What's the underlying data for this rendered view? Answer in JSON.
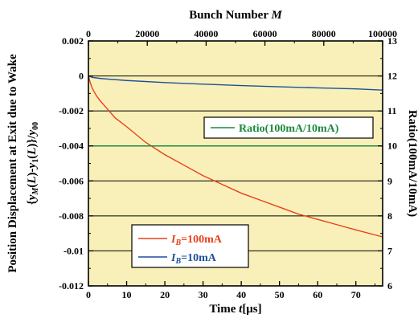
{
  "chart_data": {
    "type": "line",
    "title": "",
    "xlabel_bottom": "Time t[μs]",
    "xlabel_top": "Bunch Number M",
    "ylabel_left_line1": "Position Displacement at Exit due to Wake",
    "ylabel_left_line2": "{yM(L)-y1(L)}/y00",
    "ylabel_right": "Ratio(100mA/10mA)",
    "xlim_bottom": [
      0,
      77
    ],
    "xticks_bottom": [
      0,
      10,
      20,
      30,
      40,
      50,
      60,
      70
    ],
    "xlim_top": [
      0,
      100000
    ],
    "xticks_top": [
      0,
      20000,
      40000,
      60000,
      80000,
      100000
    ],
    "ylim_left": [
      -0.012,
      0.002
    ],
    "yticks_left": [
      0.002,
      0,
      -0.002,
      -0.004,
      -0.006,
      -0.008,
      -0.01,
      -0.012
    ],
    "ytick_labels_left": [
      "0.002",
      "0",
      "-0.002",
      "-0.004",
      "-0.006",
      "-0.008",
      "-0.01",
      "-0.012"
    ],
    "ylim_right": [
      6,
      13
    ],
    "yticks_right": [
      6,
      7,
      8,
      9,
      10,
      11,
      12,
      13
    ],
    "grid": true,
    "background_color": "#f8f0b8",
    "series": [
      {
        "name": "IB=100mA",
        "axis": "left",
        "color": "#e8401c",
        "x": [
          0,
          0.5,
          1,
          2,
          3,
          5,
          7,
          10,
          15,
          20,
          25,
          30,
          35,
          40,
          45,
          50,
          55,
          60,
          65,
          70,
          77
        ],
        "y": [
          0,
          -0.0004,
          -0.0007,
          -0.0011,
          -0.0014,
          -0.0019,
          -0.0024,
          -0.0029,
          -0.0038,
          -0.0045,
          -0.0051,
          -0.0057,
          -0.0062,
          -0.0067,
          -0.0071,
          -0.0075,
          -0.0079,
          -0.0082,
          -0.0085,
          -0.0088,
          -0.0092
        ]
      },
      {
        "name": "IB=10mA",
        "axis": "left",
        "color": "#1e4f9c",
        "x": [
          0,
          1,
          3,
          5,
          10,
          20,
          30,
          40,
          50,
          60,
          70,
          77
        ],
        "y": [
          0,
          -8e-05,
          -0.00014,
          -0.00018,
          -0.00026,
          -0.00038,
          -0.00047,
          -0.00055,
          -0.00062,
          -0.00068,
          -0.00074,
          -0.00081
        ]
      },
      {
        "name": "Ratio(100mA/10mA)",
        "axis": "right",
        "color": "#1a8a3c",
        "x": [
          0,
          77
        ],
        "y": [
          10,
          10
        ]
      }
    ],
    "legend_ratio": "Ratio(100mA/10mA)",
    "legend_100": {
      "prefix": "I",
      "sub": "B",
      "suffix": "=100mA"
    },
    "legend_10": {
      "prefix": "I",
      "sub": "B",
      "suffix": "=10mA"
    }
  }
}
